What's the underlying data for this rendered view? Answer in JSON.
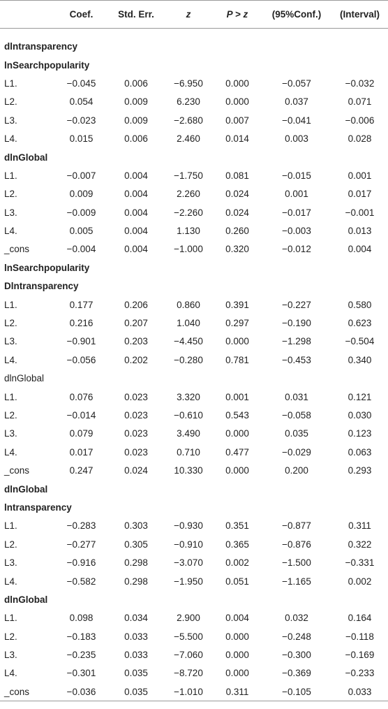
{
  "table": {
    "header": [
      "",
      "Coef.",
      "Std. Err.",
      "z",
      "P > z",
      "(95%Conf.)",
      "(Interval)"
    ],
    "rows": [
      {
        "section": "dlntransparency",
        "bold": true
      },
      {
        "section": "lnSearchpopularity",
        "bold": true
      },
      [
        "L1.",
        "−0.045",
        "0.006",
        "−6.950",
        "0.000",
        "−0.057",
        "−0.032"
      ],
      [
        "L2.",
        "0.054",
        "0.009",
        "6.230",
        "0.000",
        "0.037",
        "0.071"
      ],
      [
        "L3.",
        "−0.023",
        "0.009",
        "−2.680",
        "0.007",
        "−0.041",
        "−0.006"
      ],
      [
        "L4.",
        "0.015",
        "0.006",
        "2.460",
        "0.014",
        "0.003",
        "0.028"
      ],
      {
        "section": "dlnGlobal",
        "bold": true
      },
      [
        "L1.",
        "−0.007",
        "0.004",
        "−1.750",
        "0.081",
        "−0.015",
        "0.001"
      ],
      [
        "L2.",
        "0.009",
        "0.004",
        "2.260",
        "0.024",
        "0.001",
        "0.017"
      ],
      [
        "L3.",
        "−0.009",
        "0.004",
        "−2.260",
        "0.024",
        "−0.017",
        "−0.001"
      ],
      [
        "L4.",
        "0.005",
        "0.004",
        "1.130",
        "0.260",
        "−0.003",
        "0.013"
      ],
      [
        "_cons",
        "−0.004",
        "0.004",
        "−1.000",
        "0.320",
        "−0.012",
        "0.004"
      ],
      {
        "section": "lnSearchpopularity",
        "bold": true
      },
      {
        "section": "Dlntransparency",
        "bold": true
      },
      [
        "L1.",
        "0.177",
        "0.206",
        "0.860",
        "0.391",
        "−0.227",
        "0.580"
      ],
      [
        "L2.",
        "0.216",
        "0.207",
        "1.040",
        "0.297",
        "−0.190",
        "0.623"
      ],
      [
        "L3.",
        "−0.901",
        "0.203",
        "−4.450",
        "0.000",
        "−1.298",
        "−0.504"
      ],
      [
        "L4.",
        "−0.056",
        "0.202",
        "−0.280",
        "0.781",
        "−0.453",
        "0.340"
      ],
      {
        "section": "dlnGlobal",
        "bold": false
      },
      [
        "L1.",
        "0.076",
        "0.023",
        "3.320",
        "0.001",
        "0.031",
        "0.121"
      ],
      [
        "L2.",
        "−0.014",
        "0.023",
        "−0.610",
        "0.543",
        "−0.058",
        "0.030"
      ],
      [
        "L3.",
        "0.079",
        "0.023",
        "3.490",
        "0.000",
        "0.035",
        "0.123"
      ],
      [
        "L4.",
        "0.017",
        "0.023",
        "0.710",
        "0.477",
        "−0.029",
        "0.063"
      ],
      [
        "_cons",
        "0.247",
        "0.024",
        "10.330",
        "0.000",
        "0.200",
        "0.293"
      ],
      {
        "section": "dlnGlobal",
        "bold": true
      },
      {
        "section": "lntransparency",
        "bold": true
      },
      [
        "L1.",
        "−0.283",
        "0.303",
        "−0.930",
        "0.351",
        "−0.877",
        "0.311"
      ],
      [
        "L2.",
        "−0.277",
        "0.305",
        "−0.910",
        "0.365",
        "−0.876",
        "0.322"
      ],
      [
        "L3.",
        "−0.916",
        "0.298",
        "−3.070",
        "0.002",
        "−1.500",
        "−0.331"
      ],
      [
        "L4.",
        "−0.582",
        "0.298",
        "−1.950",
        "0.051",
        "−1.165",
        "0.002"
      ],
      {
        "section": "dlnGlobal",
        "bold": true
      },
      [
        "L1.",
        "0.098",
        "0.034",
        "2.900",
        "0.004",
        "0.032",
        "0.164"
      ],
      [
        "L2.",
        "−0.183",
        "0.033",
        "−5.500",
        "0.000",
        "−0.248",
        "−0.118"
      ],
      [
        "L3.",
        "−0.235",
        "0.033",
        "−7.060",
        "0.000",
        "−0.300",
        "−0.169"
      ],
      [
        "L4.",
        "−0.301",
        "0.035",
        "−8.720",
        "0.000",
        "−0.369",
        "−0.233"
      ],
      [
        "_cons",
        "−0.036",
        "0.035",
        "−1.010",
        "0.311",
        "−0.105",
        "0.033"
      ]
    ]
  }
}
